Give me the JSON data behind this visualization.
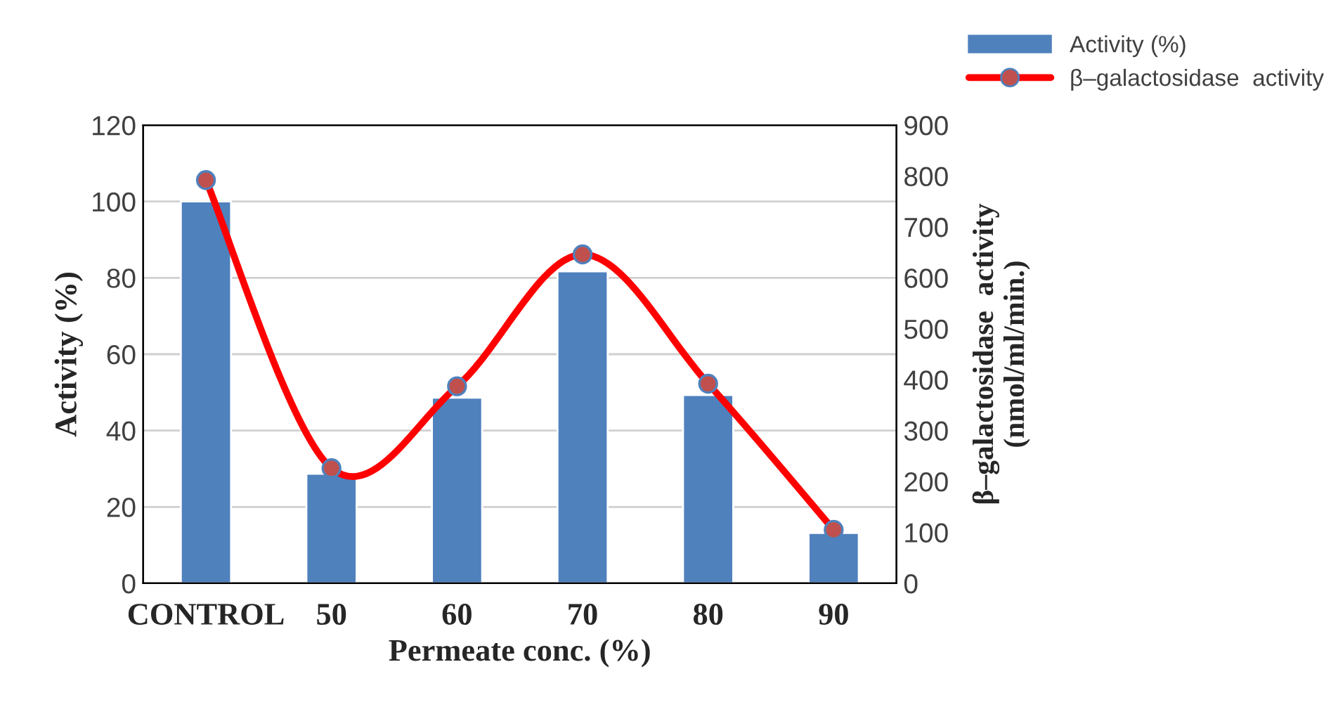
{
  "chart_data": {
    "type": "bar",
    "xlabel": "Permeate conc. (%)",
    "ylabel": "Activity (%)",
    "y2label": "β–galactosidase  activity\n(nmol/ml/min.)",
    "categories": [
      "CONTROL",
      "50",
      "60",
      "70",
      "80",
      "90"
    ],
    "series": [
      {
        "name": "Activity (%)",
        "color": "#4f81bd",
        "values": [
          100,
          28.7,
          48.6,
          81.7,
          49.3,
          13.2
        ]
      },
      {
        "name": "β–galactosidase  activity",
        "type": "line",
        "axis": "y2",
        "color": "#ff0000",
        "marker": "circle",
        "values": [
          792,
          226,
          387,
          646,
          392,
          105
        ]
      }
    ],
    "ylim": [
      0,
      120
    ],
    "yticks": [
      0,
      20,
      40,
      60,
      80,
      100,
      120
    ],
    "y2lim": [
      0,
      900
    ],
    "y2ticks": [
      0,
      100,
      200,
      300,
      400,
      500,
      600,
      700,
      800,
      900
    ],
    "grid": "y",
    "legend": "top right"
  }
}
